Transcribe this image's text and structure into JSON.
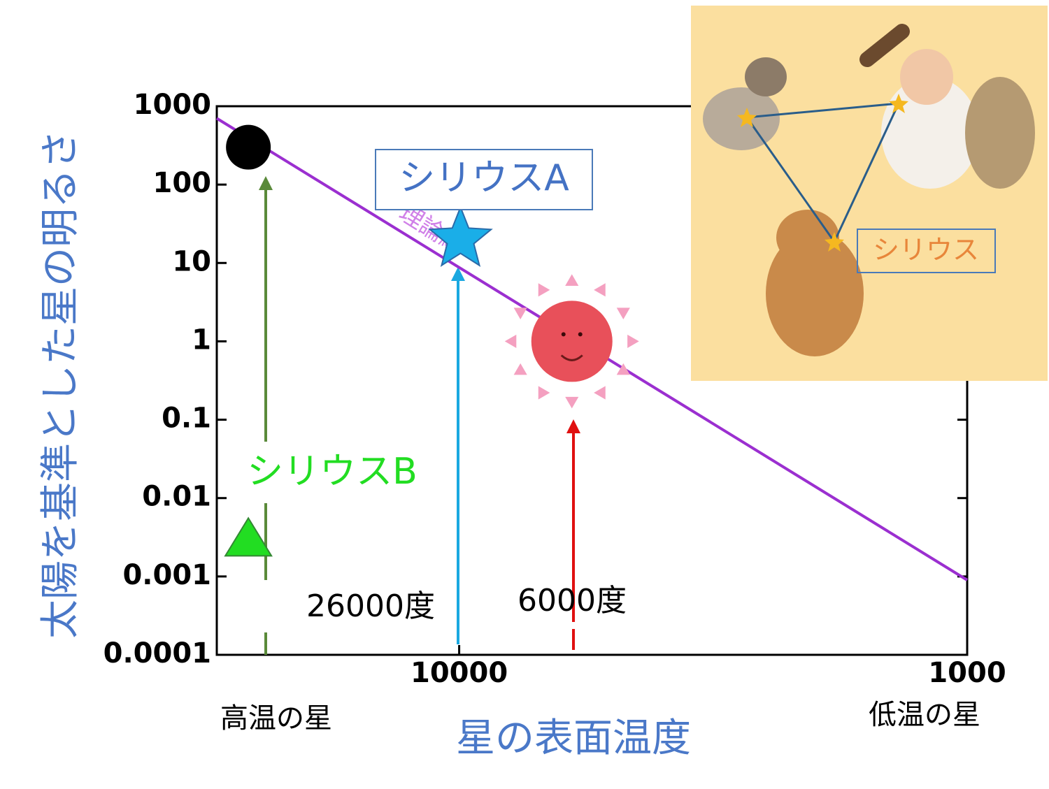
{
  "chart_data": {
    "type": "scatter",
    "y_label": "太陽を基準とした星の明るさ",
    "x_label": "星の表面温度",
    "x_left_note": "高温の星",
    "x_right_note": "低温の星",
    "x_log": true,
    "y_log": true,
    "xlim": [
      30000,
      1000
    ],
    "ylim": [
      0.0001,
      1000
    ],
    "xticks": [
      10000,
      1000
    ],
    "yticks": [
      1000,
      100,
      10,
      1,
      0.1,
      0.01,
      0.001,
      0.0001
    ],
    "series": [
      {
        "name": "理論線",
        "color": "#9b2fd0",
        "x": [
          30000,
          1000
        ],
        "values": [
          700,
          0.0009
        ]
      }
    ],
    "points": [
      {
        "x": 26000,
        "value": 300,
        "color": "#000000",
        "marker": "circle"
      },
      {
        "name": "シリウスA",
        "x": 9940,
        "value": 20,
        "color": "#1aaee8",
        "marker": "star"
      },
      {
        "x": 6000,
        "value": 1,
        "color": "#e8505a",
        "marker": "sun"
      },
      {
        "name": "シリウスB",
        "x": 26000,
        "value": 0.003,
        "color": "#22dd22",
        "marker": "triangle"
      }
    ],
    "annotations": [
      "26000度",
      "6000度"
    ],
    "inset_label": "シリウス"
  }
}
